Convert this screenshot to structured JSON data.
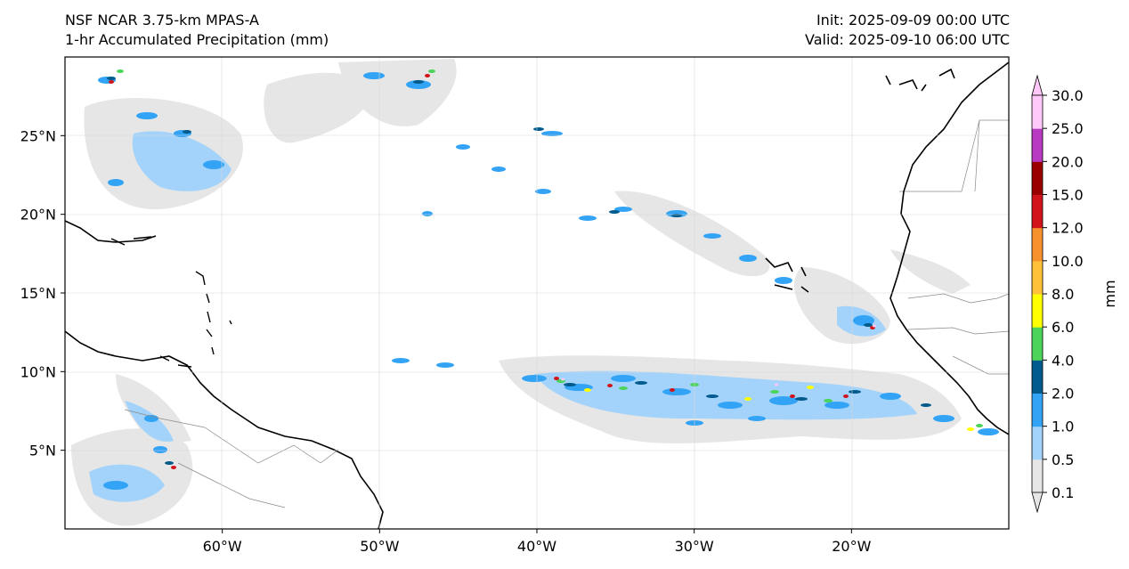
{
  "header": {
    "model": "NSF NCAR 3.75-km MPAS-A",
    "field": "1-hr Accumulated Precipitation (mm)",
    "init": "Init: 2025-09-09 00:00 UTC",
    "valid": "Valid: 2025-09-10 06:00 UTC"
  },
  "map": {
    "lat_ticks": [
      "25°N",
      "20°N",
      "15°N",
      "10°N",
      "5°N"
    ],
    "lon_ticks": [
      "60°W",
      "50°W",
      "40°W",
      "30°W",
      "20°W"
    ],
    "lat_values": [
      25,
      20,
      15,
      10,
      5
    ],
    "lon_values": [
      -60,
      -50,
      -40,
      -30,
      -20
    ],
    "extent": {
      "lon_min": -70,
      "lon_max": -10,
      "lat_min": 0,
      "lat_max": 30
    }
  },
  "colorbar": {
    "label": "mm",
    "levels": [
      "0.1",
      "0.5",
      "1.0",
      "2.0",
      "4.0",
      "6.0",
      "8.0",
      "10.0",
      "12.0",
      "15.0",
      "20.0",
      "25.0",
      "30.0"
    ],
    "colors": [
      "#e6e6e6",
      "#a3d3fa",
      "#33a3f5",
      "#005a8c",
      "#4cd35a",
      "#ffff00",
      "#ffc03a",
      "#f5922d",
      "#d0141a",
      "#9a0000",
      "#b93ac2",
      "#ffc8f8"
    ],
    "extend": "both"
  },
  "colors": {
    "land_outline": "#000000",
    "borders": "#8a8a8a",
    "grid": "#d8d8d8"
  }
}
